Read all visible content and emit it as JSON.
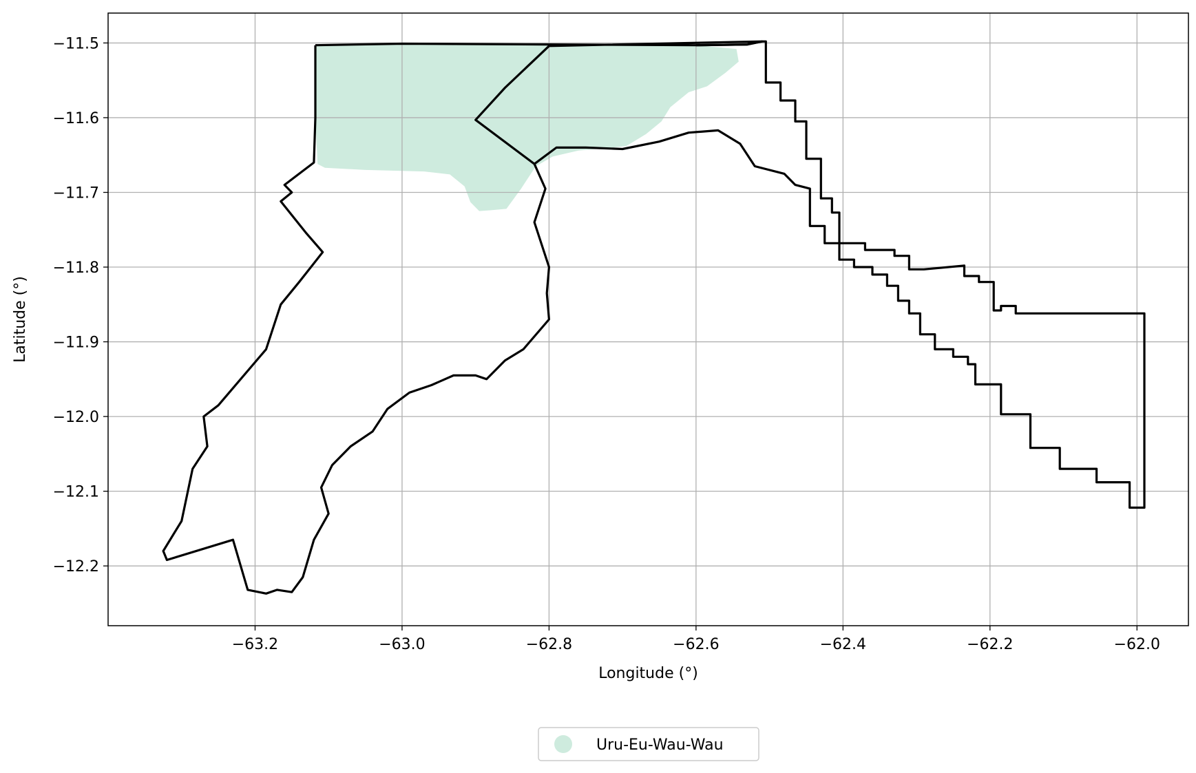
{
  "chart_data": {
    "type": "map",
    "xlabel": "Longitude (°)",
    "ylabel": "Latitude (°)",
    "xlim": [
      -63.4,
      -61.93
    ],
    "ylim": [
      -12.28,
      -11.46
    ],
    "x_ticks": [
      -63.2,
      -63.0,
      -62.8,
      -62.6,
      -62.4,
      -62.2,
      -62.0
    ],
    "x_tick_labels": [
      "−63.2",
      "−63.0",
      "−62.8",
      "−62.6",
      "−62.4",
      "−62.2",
      "−62.0"
    ],
    "y_ticks": [
      -11.5,
      -11.6,
      -11.7,
      -11.8,
      -11.9,
      -12.0,
      -12.1,
      -12.2
    ],
    "y_tick_labels": [
      "−11.5",
      "−11.6",
      "−11.7",
      "−11.8",
      "−11.9",
      "−12.0",
      "−12.1",
      "−12.2"
    ],
    "grid": true,
    "legend": {
      "placement": "bottom-center-outside",
      "entries": [
        {
          "label": "Uru-Eu-Wau-Wau",
          "color": "#ceebde",
          "marker": "circle"
        }
      ]
    },
    "colors": {
      "fill": "#ceebde",
      "boundary": "#000000",
      "grid": "#b0b0b0"
    },
    "territory_fill": [
      [
        -63.118,
        -11.503
      ],
      [
        -63.0,
        -11.502
      ],
      [
        -62.8,
        -11.503
      ],
      [
        -62.6,
        -11.503
      ],
      [
        -62.545,
        -11.508
      ],
      [
        -62.542,
        -11.525
      ],
      [
        -62.56,
        -11.54
      ],
      [
        -62.585,
        -11.558
      ],
      [
        -62.61,
        -11.566
      ],
      [
        -62.635,
        -11.586
      ],
      [
        -62.647,
        -11.605
      ],
      [
        -62.668,
        -11.622
      ],
      [
        -62.695,
        -11.638
      ],
      [
        -62.725,
        -11.641
      ],
      [
        -62.76,
        -11.644
      ],
      [
        -62.795,
        -11.652
      ],
      [
        -62.818,
        -11.665
      ],
      [
        -62.838,
        -11.695
      ],
      [
        -62.858,
        -11.722
      ],
      [
        -62.88,
        -11.724
      ],
      [
        -62.895,
        -11.725
      ],
      [
        -62.907,
        -11.713
      ],
      [
        -62.915,
        -11.692
      ],
      [
        -62.935,
        -11.676
      ],
      [
        -62.97,
        -11.672
      ],
      [
        -63.05,
        -11.67
      ],
      [
        -63.105,
        -11.667
      ],
      [
        -63.115,
        -11.662
      ],
      [
        -63.118,
        -11.6
      ],
      [
        -63.118,
        -11.503
      ]
    ],
    "western_boundary": [
      [
        -63.118,
        -11.503
      ],
      [
        -63.0,
        -11.501
      ],
      [
        -62.8,
        -11.502
      ],
      [
        -62.6,
        -11.503
      ],
      [
        -62.53,
        -11.502
      ],
      [
        -62.51,
        -11.498
      ],
      [
        -62.8,
        -11.504
      ],
      [
        -62.86,
        -11.56
      ],
      [
        -62.9,
        -11.603
      ],
      [
        -62.82,
        -11.662
      ],
      [
        -62.805,
        -11.695
      ],
      [
        -62.82,
        -11.74
      ],
      [
        -62.8,
        -11.8
      ],
      [
        -62.803,
        -11.835
      ],
      [
        -62.8,
        -11.87
      ],
      [
        -62.835,
        -11.91
      ],
      [
        -62.86,
        -11.925
      ],
      [
        -62.885,
        -11.95
      ],
      [
        -62.9,
        -11.945
      ],
      [
        -62.93,
        -11.945
      ],
      [
        -62.96,
        -11.958
      ],
      [
        -62.99,
        -11.968
      ],
      [
        -63.02,
        -11.99
      ],
      [
        -63.04,
        -12.02
      ],
      [
        -63.07,
        -12.04
      ],
      [
        -63.095,
        -12.065
      ],
      [
        -63.11,
        -12.095
      ],
      [
        -63.1,
        -12.13
      ],
      [
        -63.12,
        -12.165
      ],
      [
        -63.135,
        -12.215
      ],
      [
        -63.15,
        -12.235
      ],
      [
        -63.17,
        -12.232
      ],
      [
        -63.185,
        -12.237
      ],
      [
        -63.21,
        -12.232
      ],
      [
        -63.23,
        -12.165
      ],
      [
        -63.32,
        -12.192
      ],
      [
        -63.325,
        -12.18
      ],
      [
        -63.3,
        -12.14
      ],
      [
        -63.285,
        -12.07
      ],
      [
        -63.265,
        -12.04
      ],
      [
        -63.27,
        -12.0
      ],
      [
        -63.25,
        -11.985
      ],
      [
        -63.185,
        -11.91
      ],
      [
        -63.165,
        -11.85
      ],
      [
        -63.14,
        -11.82
      ],
      [
        -63.108,
        -11.78
      ],
      [
        -63.13,
        -11.755
      ],
      [
        -63.165,
        -11.712
      ],
      [
        -63.15,
        -11.7
      ],
      [
        -63.16,
        -11.69
      ],
      [
        -63.12,
        -11.66
      ],
      [
        -63.118,
        -11.6
      ],
      [
        -63.118,
        -11.503
      ]
    ],
    "central_boundary": [
      [
        -62.82,
        -11.662
      ],
      [
        -62.79,
        -11.64
      ],
      [
        -62.75,
        -11.64
      ],
      [
        -62.7,
        -11.642
      ],
      [
        -62.65,
        -11.632
      ],
      [
        -62.61,
        -11.62
      ],
      [
        -62.57,
        -11.617
      ],
      [
        -62.54,
        -11.635
      ],
      [
        -62.52,
        -11.665
      ],
      [
        -62.48,
        -11.675
      ],
      [
        -62.465,
        -11.69
      ],
      [
        -62.445,
        -11.695
      ],
      [
        -62.445,
        -11.745
      ],
      [
        -62.425,
        -11.745
      ],
      [
        -62.425,
        -11.768
      ],
      [
        -62.405,
        -11.768
      ],
      [
        -62.405,
        -11.79
      ],
      [
        -62.385,
        -11.79
      ],
      [
        -62.385,
        -11.8
      ],
      [
        -62.36,
        -11.8
      ],
      [
        -62.36,
        -11.81
      ],
      [
        -62.34,
        -11.81
      ],
      [
        -62.34,
        -11.825
      ],
      [
        -62.325,
        -11.825
      ],
      [
        -62.325,
        -11.845
      ],
      [
        -62.31,
        -11.845
      ],
      [
        -62.31,
        -11.862
      ],
      [
        -62.295,
        -11.862
      ],
      [
        -62.295,
        -11.89
      ],
      [
        -62.275,
        -11.89
      ],
      [
        -62.275,
        -11.91
      ],
      [
        -62.25,
        -11.91
      ],
      [
        -62.25,
        -11.92
      ],
      [
        -62.23,
        -11.92
      ],
      [
        -62.23,
        -11.93
      ],
      [
        -62.22,
        -11.93
      ],
      [
        -62.22,
        -11.957
      ],
      [
        -62.185,
        -11.957
      ],
      [
        -62.185,
        -11.997
      ],
      [
        -62.145,
        -11.997
      ],
      [
        -62.145,
        -12.042
      ],
      [
        -62.105,
        -12.042
      ],
      [
        -62.105,
        -12.07
      ],
      [
        -62.055,
        -12.07
      ],
      [
        -62.055,
        -12.088
      ],
      [
        -62.01,
        -12.088
      ],
      [
        -62.01,
        -12.122
      ],
      [
        -61.99,
        -12.122
      ],
      [
        -61.99,
        -11.862
      ],
      [
        -62.165,
        -11.862
      ],
      [
        -62.165,
        -11.852
      ],
      [
        -62.185,
        -11.852
      ],
      [
        -62.185,
        -11.858
      ],
      [
        -62.195,
        -11.858
      ],
      [
        -62.195,
        -11.82
      ],
      [
        -62.215,
        -11.82
      ],
      [
        -62.215,
        -11.812
      ],
      [
        -62.235,
        -11.812
      ],
      [
        -62.235,
        -11.798
      ],
      [
        -62.29,
        -11.803
      ],
      [
        -62.31,
        -11.803
      ],
      [
        -62.31,
        -11.785
      ],
      [
        -62.33,
        -11.785
      ],
      [
        -62.33,
        -11.777
      ],
      [
        -62.37,
        -11.777
      ],
      [
        -62.37,
        -11.768
      ],
      [
        -62.405,
        -11.768
      ],
      [
        -62.405,
        -11.727
      ],
      [
        -62.415,
        -11.727
      ],
      [
        -62.415,
        -11.708
      ],
      [
        -62.43,
        -11.708
      ],
      [
        -62.43,
        -11.655
      ],
      [
        -62.45,
        -11.655
      ],
      [
        -62.45,
        -11.605
      ],
      [
        -62.465,
        -11.605
      ],
      [
        -62.465,
        -11.577
      ],
      [
        -62.485,
        -11.577
      ],
      [
        -62.485,
        -11.553
      ],
      [
        -62.505,
        -11.553
      ],
      [
        -62.505,
        -11.498
      ],
      [
        -62.51,
        -11.498
      ],
      [
        -62.53,
        -11.502
      ],
      [
        -62.6,
        -11.503
      ]
    ]
  }
}
